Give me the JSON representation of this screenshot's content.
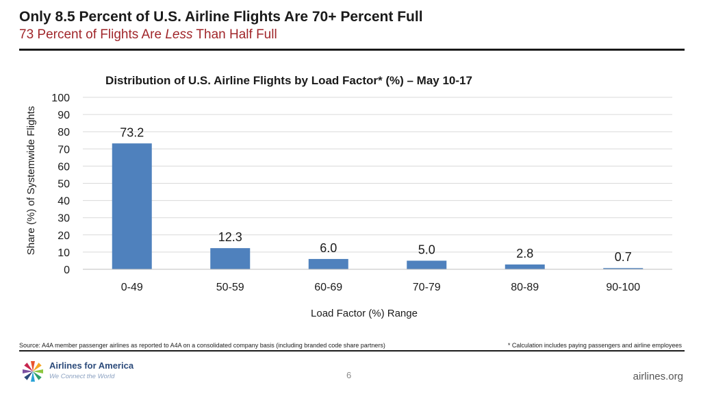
{
  "slide": {
    "title": "Only 8.5 Percent of U.S. Airline Flights Are 70+ Percent Full",
    "subtitle_pre": "73 Percent of Flights Are ",
    "subtitle_em": "Less",
    "subtitle_post": " Than Half Full",
    "source": "Source: A4A member passenger airlines as reported to A4A on a consolidated company basis (including branded code share partners)",
    "footnote": "* Calculation includes paying passengers and airline employees",
    "page_number": "6",
    "website": "airlines.org",
    "logo_name": "Airlines for America",
    "logo_tagline": "We Connect the World"
  },
  "colors": {
    "bar": "#4f81bd",
    "subtitle": "#a0262a",
    "gridline": "#d9d9d9"
  },
  "chart_data": {
    "type": "bar",
    "title": "Distribution of U.S. Airline Flights by Load Factor* (%) – May 10-17",
    "xlabel": "Load Factor (%) Range",
    "ylabel": "Share (%) of Systemwide Flights",
    "categories": [
      "0-49",
      "50-59",
      "60-69",
      "70-79",
      "80-89",
      "90-100"
    ],
    "values": [
      73.2,
      12.3,
      6.0,
      5.0,
      2.8,
      0.7
    ],
    "data_labels": [
      "73.2",
      "12.3",
      "6.0",
      "5.0",
      "2.8",
      "0.7"
    ],
    "ylim": [
      0,
      100
    ],
    "yticks": [
      0,
      10,
      20,
      30,
      40,
      50,
      60,
      70,
      80,
      90,
      100
    ],
    "grid": true,
    "legend": "none"
  }
}
